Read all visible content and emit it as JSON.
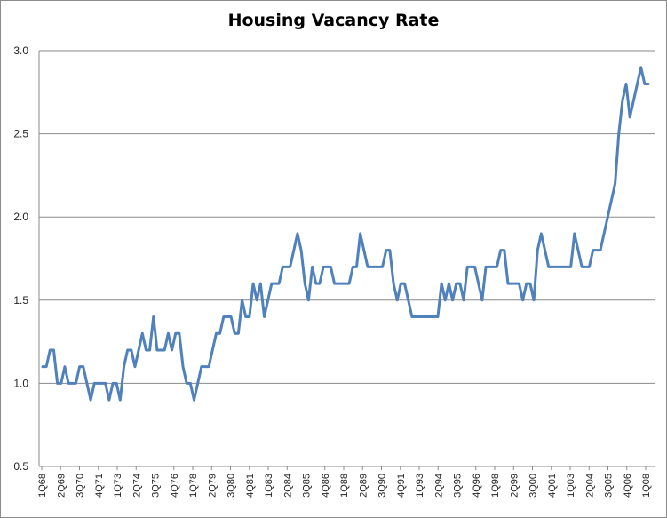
{
  "chart_data": {
    "type": "line",
    "title": "Housing Vacancy Rate",
    "xlabel": "",
    "ylabel": "",
    "ylim": [
      0.5,
      3.0
    ],
    "yticks": [
      "0.5",
      "1.0",
      "1.5",
      "2.0",
      "2.5",
      "3.0"
    ],
    "grid": true,
    "legend": "none",
    "line_color": "#4f81bd",
    "x_tick_labels": [
      "1Q68",
      "2Q69",
      "3Q70",
      "4Q71",
      "1Q73",
      "2Q74",
      "3Q75",
      "4Q76",
      "1Q78",
      "2Q79",
      "3Q80",
      "4Q81",
      "1Q83",
      "2Q84",
      "3Q85",
      "4Q86",
      "1Q88",
      "2Q89",
      "3Q90",
      "4Q91",
      "1Q93",
      "2Q94",
      "3Q95",
      "4Q96",
      "1Q98",
      "2Q99",
      "3Q00",
      "4Q01",
      "1Q03",
      "2Q04",
      "3Q05",
      "4Q06",
      "1Q08"
    ],
    "series": [
      {
        "values": [
          1.1,
          1.1,
          1.2,
          1.2,
          1.0,
          1.0,
          1.1,
          1.0,
          1.0,
          1.0,
          1.1,
          1.1,
          1.0,
          0.9,
          1.0,
          1.0,
          1.0,
          1.0,
          0.9,
          1.0,
          1.0,
          0.9,
          1.1,
          1.2,
          1.2,
          1.1,
          1.2,
          1.3,
          1.2,
          1.2,
          1.4,
          1.2,
          1.2,
          1.2,
          1.3,
          1.2,
          1.3,
          1.3,
          1.1,
          1.0,
          1.0,
          0.9,
          1.0,
          1.1,
          1.1,
          1.1,
          1.2,
          1.3,
          1.3,
          1.4,
          1.4,
          1.4,
          1.3,
          1.3,
          1.5,
          1.4,
          1.4,
          1.6,
          1.5,
          1.6,
          1.4,
          1.5,
          1.6,
          1.6,
          1.6,
          1.7,
          1.7,
          1.7,
          1.8,
          1.9,
          1.8,
          1.6,
          1.5,
          1.7,
          1.6,
          1.6,
          1.7,
          1.7,
          1.7,
          1.6,
          1.6,
          1.6,
          1.6,
          1.6,
          1.7,
          1.7,
          1.9,
          1.8,
          1.7,
          1.7,
          1.7,
          1.7,
          1.7,
          1.8,
          1.8,
          1.6,
          1.5,
          1.6,
          1.6,
          1.5,
          1.4,
          1.4,
          1.4,
          1.4,
          1.4,
          1.4,
          1.4,
          1.4,
          1.6,
          1.5,
          1.6,
          1.5,
          1.6,
          1.6,
          1.5,
          1.7,
          1.7,
          1.7,
          1.6,
          1.5,
          1.7,
          1.7,
          1.7,
          1.7,
          1.8,
          1.8,
          1.6,
          1.6,
          1.6,
          1.6,
          1.5,
          1.6,
          1.6,
          1.5,
          1.8,
          1.9,
          1.8,
          1.7,
          1.7,
          1.7,
          1.7,
          1.7,
          1.7,
          1.7,
          1.9,
          1.8,
          1.7,
          1.7,
          1.7,
          1.8,
          1.8,
          1.8,
          1.9,
          2.0,
          2.1,
          2.2,
          2.5,
          2.7,
          2.8,
          2.6,
          2.7,
          2.8,
          2.9,
          2.8,
          2.8
        ]
      }
    ]
  }
}
